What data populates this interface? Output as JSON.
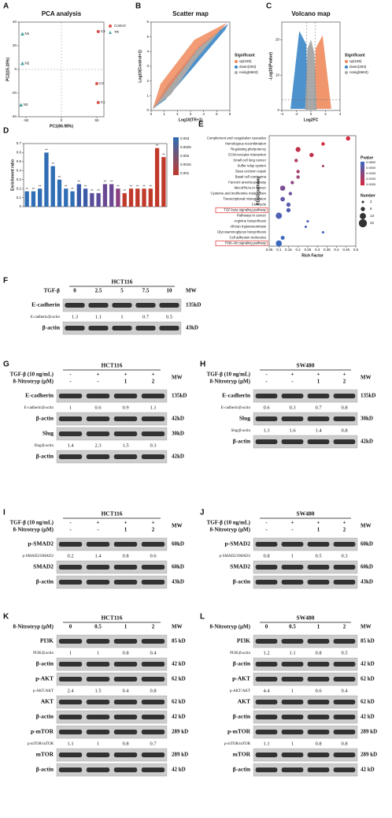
{
  "chart_data": [
    {
      "panel": "A",
      "type": "scatter",
      "title": "PCA analysis",
      "x_label": "PC1(66.98%)",
      "y_label": "PC2(15.18%)",
      "xlim": [
        -60,
        60
      ],
      "ylim": [
        -40,
        40
      ],
      "xticks": [
        -50,
        0,
        50
      ],
      "yticks": [
        -40,
        -20,
        0,
        20,
        40
      ],
      "series": [
        {
          "name": "Control",
          "color": "#d9534f",
          "marker": "circle",
          "labels": [
            "C1",
            "C2",
            "C3"
          ],
          "x": [
            52,
            50,
            52
          ],
          "values": [
            -28,
            -12,
            32
          ]
        },
        {
          "name": "TR",
          "color": "#4fa3a0",
          "marker": "triangle",
          "labels": [
            "N1",
            "N2",
            "N3"
          ],
          "x": [
            -55,
            -55,
            -57
          ],
          "values": [
            30,
            5,
            -30
          ]
        }
      ]
    },
    {
      "panel": "B",
      "type": "cloud",
      "shape": "diagonal",
      "title": "Scatter map",
      "x_label": "Log10(TR+1)",
      "y_label": "Log10(Control+1)",
      "xlim": [
        0,
        6
      ],
      "ylim": [
        0,
        6
      ],
      "xticks": [
        0,
        1,
        2,
        3,
        4,
        5,
        6
      ],
      "yticks": [
        0,
        1,
        2,
        3,
        4,
        5,
        6
      ],
      "legend_title": "Significant",
      "series": [
        {
          "name": "up(165)",
          "color": "#f08a5d"
        },
        {
          "name": "down(303)",
          "color": "#3a86c8"
        },
        {
          "name": "nosig(6663)",
          "color": "#a9a9a9"
        }
      ]
    },
    {
      "panel": "C",
      "type": "cloud",
      "shape": "volcano",
      "title": "Volcano map",
      "x_label": "Log2FC",
      "y_label": "-Log10(Pvalue)",
      "xlim": [
        -4,
        4
      ],
      "ylim": [
        0,
        25
      ],
      "xticks": [
        -4,
        -2,
        0,
        2,
        4
      ],
      "yticks": [
        0,
        10,
        20
      ],
      "legend_title": "Significant",
      "series": [
        {
          "name": "up(165)",
          "color": "#f08a5d"
        },
        {
          "name": "down(303)",
          "color": "#3a86c8"
        },
        {
          "name": "nosig(6663)",
          "color": "#a9a9a9"
        }
      ]
    },
    {
      "panel": "D",
      "type": "bar",
      "y_label": "Enrichment ratio",
      "ylim": [
        0,
        0.7
      ],
      "yticks": [
        0,
        0.1,
        0.2,
        0.3,
        0.4,
        0.5,
        0.6,
        0.7
      ],
      "categories": [
        null,
        null,
        null,
        null,
        null,
        null,
        null,
        null,
        null,
        null,
        null,
        null,
        null,
        null,
        null,
        null,
        null,
        null,
        null,
        null,
        null,
        null
      ],
      "values": [
        0.17,
        0.17,
        0.2,
        0.6,
        0.45,
        0.3,
        0.2,
        0.17,
        0.25,
        0.2,
        0.15,
        0.15,
        0.25,
        0.25,
        0.2,
        0.15,
        0.2,
        0.2,
        0.2,
        0.2,
        0.65,
        0.55
      ],
      "value_labels": [
        "**",
        "**",
        "**",
        "**",
        "**",
        "**",
        "**",
        "**",
        "**",
        "**",
        "**",
        "**",
        "**",
        "**",
        "**",
        "**",
        "**",
        "**",
        "**",
        "**",
        "**",
        "**"
      ],
      "colors": [
        "#2f6db5",
        "#2f6db5",
        "#2f6db5",
        "#2f6db5",
        "#2f6db5",
        "#2f6db5",
        "#2f6db5",
        "#2f6db5",
        "#3a5aa8",
        "#3a5aa8",
        "#5a4c9a",
        "#5a4c9a",
        "#6b4892",
        "#6b4892",
        "#8a3f80",
        "#c0392b",
        "#c0392b",
        "#c0392b",
        "#c0392b",
        "#c0392b",
        "#c0392b",
        "#c0392b"
      ],
      "colorbar_ticks": [
        "0.003",
        "0.0025",
        "0.002",
        "0.0015",
        "0.001"
      ]
    },
    {
      "panel": "E",
      "type": "dot",
      "x_label": "Rich Factor",
      "y_label": "KEGG pathway",
      "xlim": [
        0.05,
        0.5
      ],
      "xticks": [
        0.05,
        0.1,
        0.15,
        0.2,
        0.25,
        0.3,
        0.35,
        0.4,
        0.45,
        0.5
      ],
      "categories": [
        "Complement and coagulation cascades",
        "Homologous recombination",
        "Regulating pluripotency",
        "ECM-receptor interaction",
        "Small cell lung cancer",
        "Sulfur relay system",
        "Base excision repair",
        "Basal cell carcinoma",
        "Fanconi anemia pathway",
        "MicroRNAs in cancer",
        "Cysteine and methionine metabolism",
        "Transcriptional misregulation",
        "Cell cycle",
        "TGF-beta signaling pathway",
        "Pathways in cancer",
        "Arginine biosynthesis",
        "African trypanosomiasis",
        "Glycosaminoglycan biosynthesis",
        "Cell adhesion molecules",
        "PI3K-Akt signaling pathway"
      ],
      "values": [
        0.46,
        0.33,
        0.2,
        0.27,
        0.19,
        0.33,
        0.2,
        0.2,
        0.17,
        0.12,
        0.16,
        0.12,
        0.15,
        0.15,
        0.1,
        0.25,
        0.24,
        0.33,
        0.12,
        0.1
      ],
      "sizes": [
        6,
        4,
        8,
        6,
        4,
        2,
        4,
        4,
        4,
        9,
        4,
        7,
        6,
        6,
        13,
        2,
        2,
        2,
        5,
        12
      ],
      "colors": [
        "#d7263d",
        "#d7263d",
        "#c0304a",
        "#c0304a",
        "#b03a5a",
        "#a8406a",
        "#a8406a",
        "#9c467a",
        "#8f4b88",
        "#7d4f95",
        "#6f54a0",
        "#6358a8",
        "#5a5cae",
        "#4f60b3",
        "#4f60b3",
        "#4862b8",
        "#4862b8",
        "#4265bb",
        "#3d67be",
        "#3a69c0"
      ],
      "highlight": [
        13,
        19
      ],
      "color_title": "Pvalue",
      "pvalue_ticks": [
        "0.0800",
        "0.0600",
        "0.0400",
        "0.0200",
        "0.0000"
      ],
      "size_title": "Number",
      "size_ticks": [
        2,
        6,
        13,
        22
      ]
    }
  ],
  "blots": [
    {
      "panel": "F",
      "cell": "HCT116",
      "mw_header": "MW",
      "treatments": [
        {
          "label": "TGF-β",
          "lanes": [
            "0",
            "2.5",
            "5",
            "7.5",
            "10"
          ]
        }
      ],
      "rows": [
        {
          "name": "E-cadherin",
          "mw": "135kD"
        },
        {
          "ratio_label": "E-cadherin/β-actin",
          "ratios": [
            "1.3",
            "1.1",
            "1",
            "0.7",
            "0.5"
          ]
        },
        {
          "name": "β-actin",
          "mw": "43kD"
        }
      ]
    },
    {
      "panel": "G",
      "cell": "HCT116",
      "mw_header": "MW",
      "treatments": [
        {
          "label": "TGF-β (10 ng/mL)",
          "lanes": [
            "-",
            "+",
            "+",
            "+"
          ]
        },
        {
          "label": "8-Nitrotryp (μM)",
          "lanes": [
            "-",
            "-",
            "1",
            "2"
          ]
        }
      ],
      "rows": [
        {
          "name": "E-cadherin",
          "mw": "135kD"
        },
        {
          "ratio_label": "E-cadherin/β-actin",
          "ratios": [
            "1",
            "0.6",
            "0.9",
            "1.1"
          ]
        },
        {
          "name": "β-actin",
          "mw": "42kD"
        },
        {
          "name": "Slug",
          "mw": "30kD"
        },
        {
          "ratio_label": "Slug/β-actin",
          "ratios": [
            "1.4",
            "2.3",
            "1.5",
            "0.3"
          ]
        },
        {
          "name": "β-actin",
          "mw": "42kD"
        }
      ]
    },
    {
      "panel": "H",
      "cell": "SW480",
      "mw_header": "MW",
      "treatments": [
        {
          "label": "TGF-β (10 ng/mL)",
          "lanes": [
            "-",
            "+",
            "+",
            "+"
          ]
        },
        {
          "label": "8-Nitrotryp (μM)",
          "lanes": [
            "-",
            "-",
            "1",
            "2"
          ]
        }
      ],
      "rows": [
        {
          "name": "E-cadherin",
          "mw": "135kD"
        },
        {
          "ratio_label": "E-cadherin/β-actin",
          "ratios": [
            "0.6",
            "0.3",
            "0.7",
            "0.8"
          ]
        },
        {
          "name": "Slug",
          "mw": "30kD"
        },
        {
          "ratio_label": "Slug/β-actin",
          "ratios": [
            "1.3",
            "1.6",
            "1.4",
            "0.8"
          ]
        },
        {
          "name": "β-actin",
          "mw": "42kD"
        }
      ]
    },
    {
      "panel": "I",
      "cell": "HCT116",
      "mw_header": "MW",
      "treatments": [
        {
          "label": "TGF-β (10 ng/mL)",
          "lanes": [
            "-",
            "+",
            "+",
            "+"
          ]
        },
        {
          "label": "8-Nitrotryp (μM)",
          "lanes": [
            "-",
            "-",
            "1",
            "2"
          ]
        }
      ],
      "rows": [
        {
          "name": "p-SMAD2",
          "mw": "60kD"
        },
        {
          "ratio_label": "p-SMAD2/SMAD2",
          "ratios": [
            "0.2",
            "1.4",
            "0.8",
            "0.6"
          ]
        },
        {
          "name": "SMAD2",
          "mw": "60kD"
        },
        {
          "name": "β-actin",
          "mw": "43kD"
        }
      ]
    },
    {
      "panel": "J",
      "cell": "SW480",
      "mw_header": "MW",
      "treatments": [
        {
          "label": "TGF-β (10 ng/mL)",
          "lanes": [
            "-",
            "+",
            "+",
            "+"
          ]
        },
        {
          "label": "8-Nitrotryp (μM)",
          "lanes": [
            "-",
            "-",
            "1",
            "2"
          ]
        }
      ],
      "rows": [
        {
          "name": "p-SMAD2",
          "mw": "60kD"
        },
        {
          "ratio_label": "p-SMAD2/SMAD2",
          "ratios": [
            "0.8",
            "1",
            "0.5",
            "0.3"
          ]
        },
        {
          "name": "SMAD2",
          "mw": "60kD"
        },
        {
          "name": "β-actin",
          "mw": "43kD"
        }
      ]
    },
    {
      "panel": "K",
      "cell": "HCT116",
      "mw_header": "MW",
      "treatments": [
        {
          "label": "8-Nitrotryp (μM)",
          "lanes": [
            "0",
            "0.5",
            "1",
            "2"
          ]
        }
      ],
      "rows": [
        {
          "name": "PI3K",
          "mw": "85 kD"
        },
        {
          "ratio_label": "PI3K/β-actin",
          "ratios": [
            "1",
            "1",
            "0.8",
            "0.4"
          ]
        },
        {
          "name": "β-actin",
          "mw": "42 kD"
        },
        {
          "name": "p-AKT",
          "mw": "62 kD"
        },
        {
          "ratio_label": "p-AKT/AKT",
          "ratios": [
            "2.4",
            "1.5",
            "0.4",
            "0.8"
          ]
        },
        {
          "name": "AKT",
          "mw": "62 kD"
        },
        {
          "name": "β-actin",
          "mw": "42 kD"
        },
        {
          "name": "p-mTOR",
          "mw": "289 kD"
        },
        {
          "ratio_label": "p-mTOR/mTOR",
          "ratios": [
            "1.1",
            "1",
            "0.8",
            "0.7"
          ]
        },
        {
          "name": "mTOR",
          "mw": "289 kD"
        },
        {
          "name": "β-actin",
          "mw": "42 kD"
        }
      ]
    },
    {
      "panel": "L",
      "cell": "SW480",
      "mw_header": "MW",
      "treatments": [
        {
          "label": "8-Nitrotryp (μM)",
          "lanes": [
            "0",
            "0.5",
            "1",
            "2"
          ]
        }
      ],
      "rows": [
        {
          "name": "PI3K",
          "mw": "85 kD"
        },
        {
          "ratio_label": "PI3K/β-actin",
          "ratios": [
            "1.2",
            "1.1",
            "0.8",
            "0.5"
          ]
        },
        {
          "name": "β-actin",
          "mw": "42 kD"
        },
        {
          "name": "p-AKT",
          "mw": "62 kD"
        },
        {
          "ratio_label": "p-AKT/AKT",
          "ratios": [
            "4.4",
            "1",
            "0.6",
            "0.4"
          ]
        },
        {
          "name": "AKT",
          "mw": "62 kD"
        },
        {
          "name": "β-actin",
          "mw": "42 kD"
        },
        {
          "name": "p-mTOR",
          "mw": "289 kD"
        },
        {
          "ratio_label": "p-mTOR/mTOR",
          "ratios": [
            "1.1",
            "1",
            "0.8",
            "0.8"
          ]
        },
        {
          "name": "mTOR",
          "mw": "289 kD"
        },
        {
          "name": "β-actin",
          "mw": "42 kD"
        }
      ]
    }
  ]
}
